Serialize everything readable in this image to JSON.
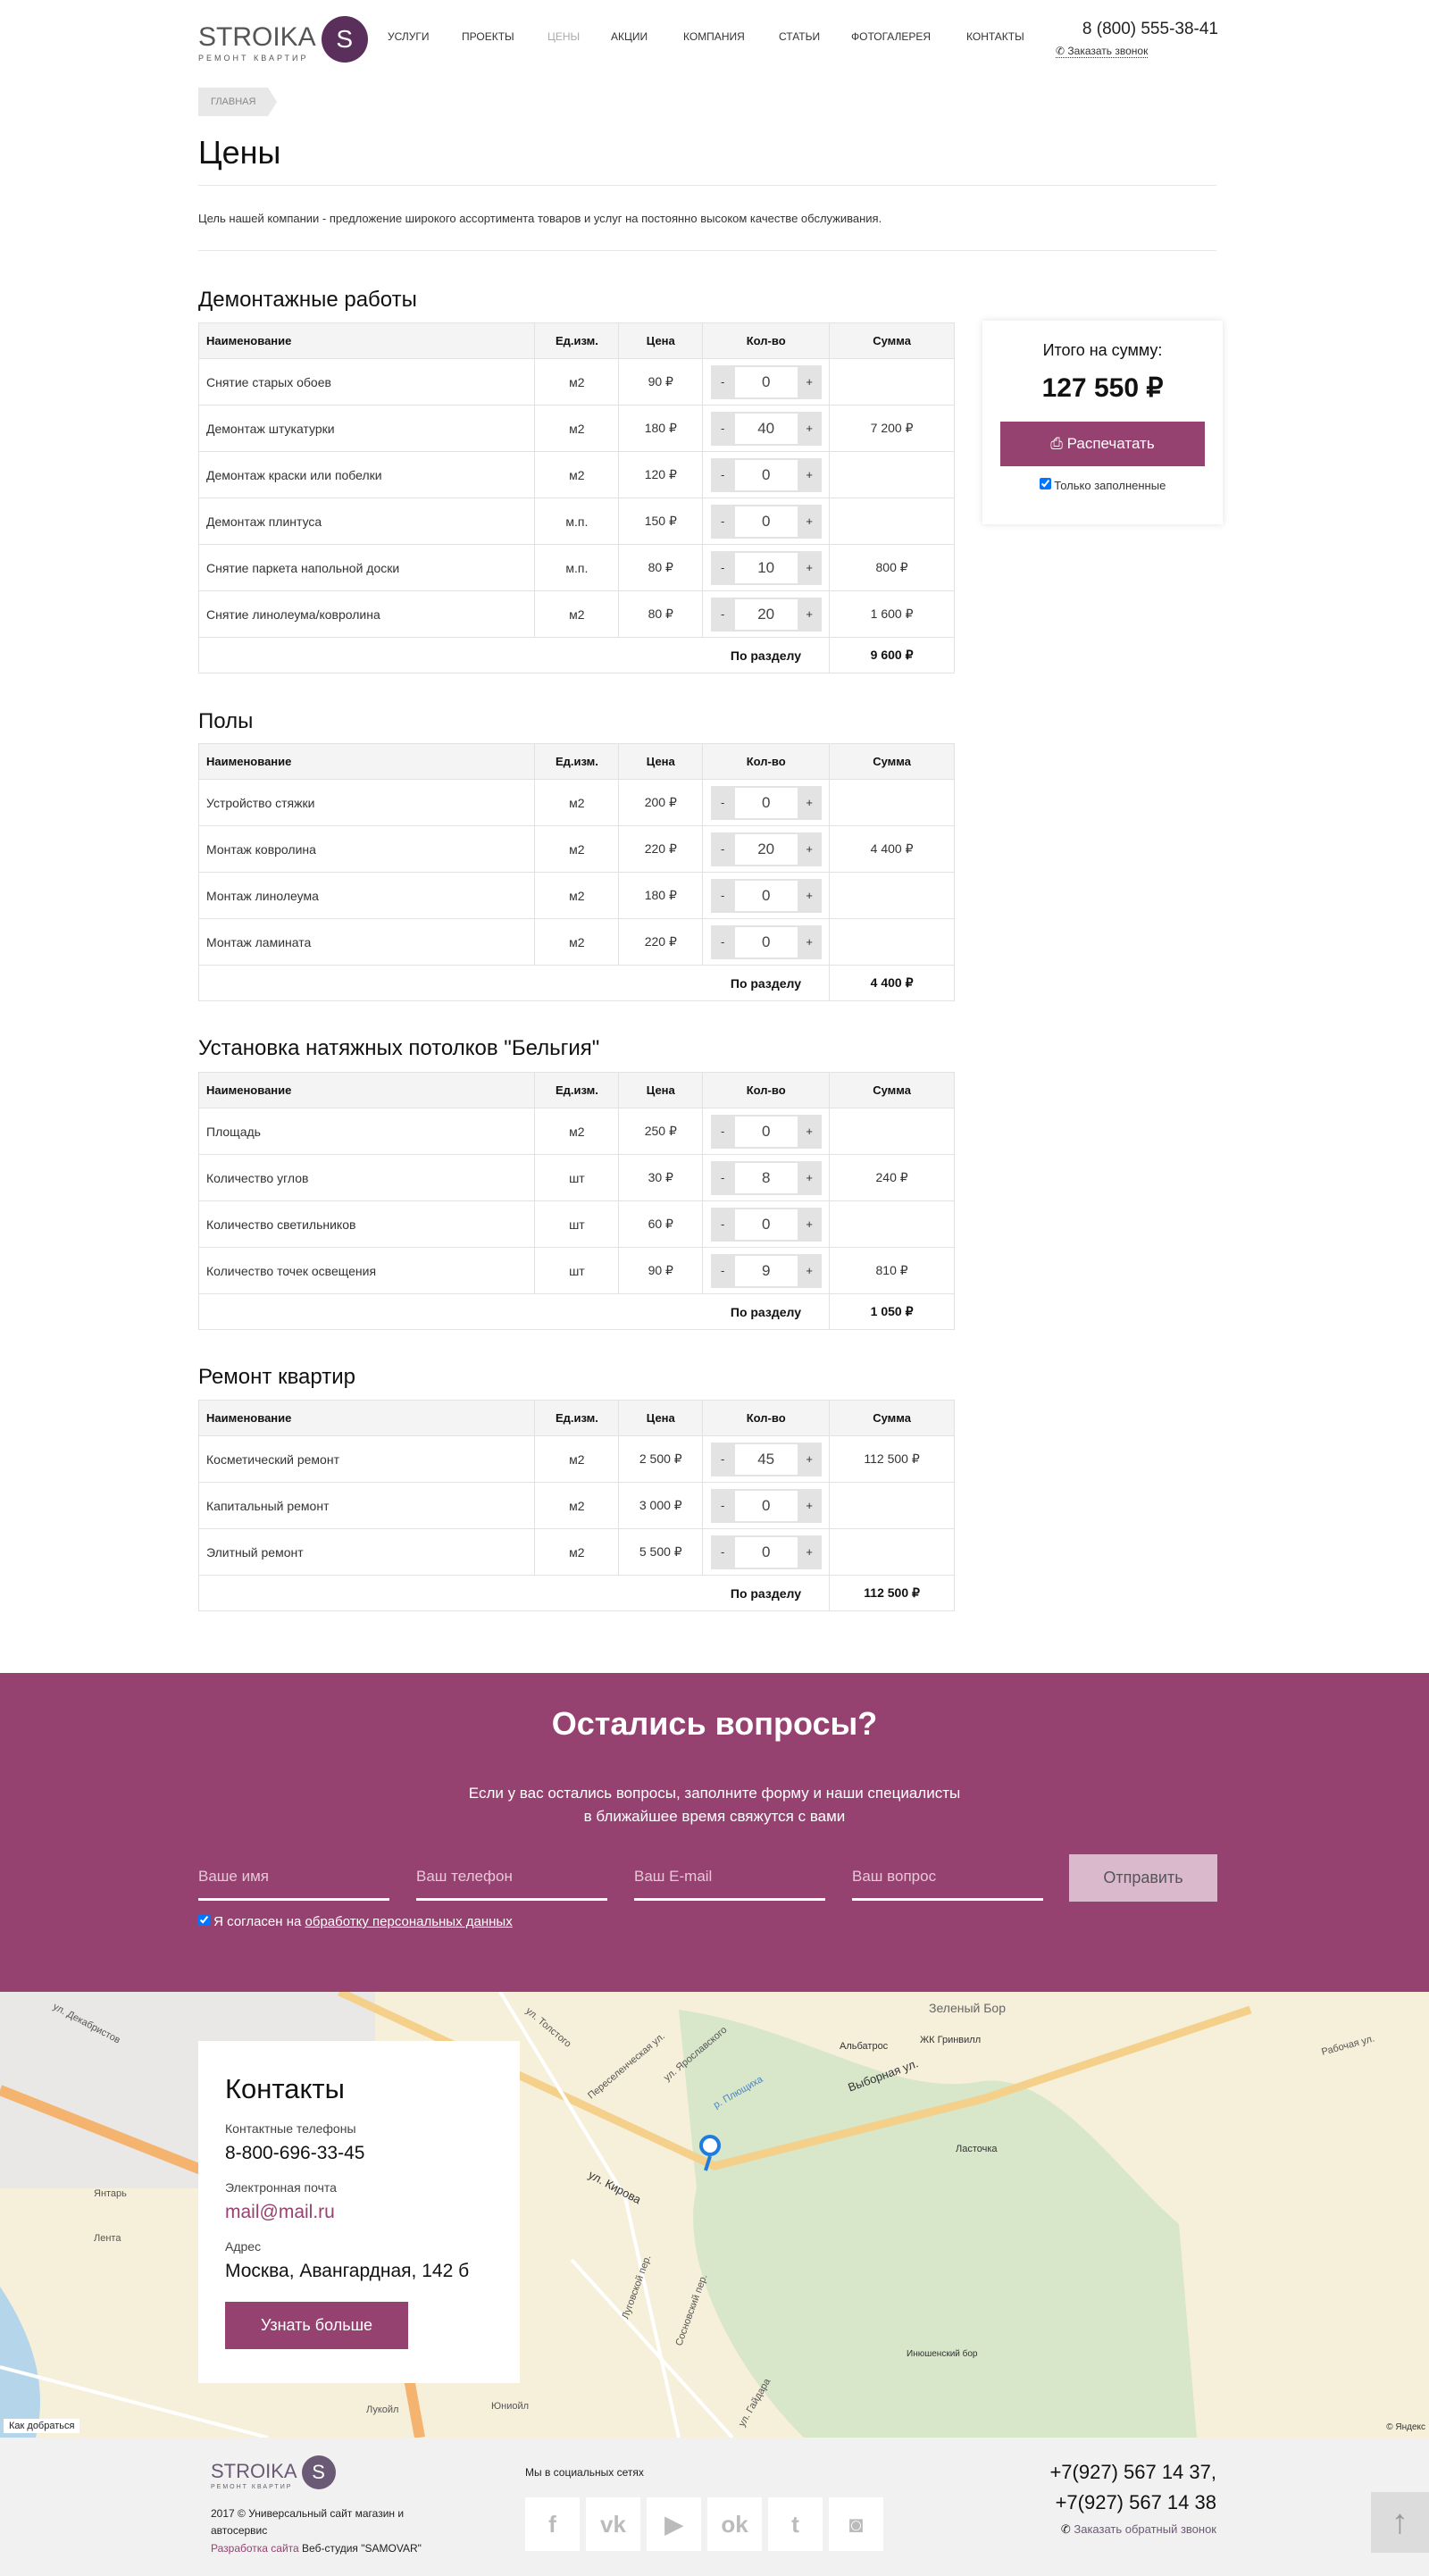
{
  "header": {
    "logo": {
      "word": "STROIKA",
      "letter": "S",
      "tagline": "РЕМОНТ КВАРТИР"
    },
    "nav": [
      "УСЛУГИ",
      "ПРОЕКТЫ",
      "ЦЕНЫ",
      "АКЦИИ",
      "КОМПАНИЯ",
      "СТАТЬИ",
      "ФОТОГАЛЕРЕЯ",
      "КОНТАКТЫ"
    ],
    "nav_active": "ЦЕНЫ",
    "phone": "8 (800) 555-38-41",
    "callback": "Заказать звонок"
  },
  "breadcrumb": [
    "ГЛАВНАЯ"
  ],
  "page": {
    "title": "Цены",
    "intro": "Цель нашей компании - предложение широкого ассортимента товаров и услуг на постоянно высоком качестве обслуживания."
  },
  "table_headers": [
    "Наименование",
    "Ед.изм.",
    "Цена",
    "Кол-во",
    "Сумма"
  ],
  "total_label": "По разделу",
  "sections": [
    {
      "title": "Демонтажные работы",
      "total": "9 600 ₽",
      "rows": [
        {
          "name": "Снятие старых обоев",
          "unit": "м2",
          "price": "90 ₽",
          "qty": "0",
          "sum": ""
        },
        {
          "name": "Демонтаж штукатурки",
          "unit": "м2",
          "price": "180 ₽",
          "qty": "40",
          "sum": "7 200 ₽"
        },
        {
          "name": "Демонтаж краски или побелки",
          "unit": "м2",
          "price": "120 ₽",
          "qty": "0",
          "sum": ""
        },
        {
          "name": "Демонтаж плинтуса",
          "unit": "м.п.",
          "price": "150 ₽",
          "qty": "0",
          "sum": ""
        },
        {
          "name": "Снятие паркета напольной доски",
          "unit": "м.п.",
          "price": "80 ₽",
          "qty": "10",
          "sum": "800 ₽"
        },
        {
          "name": "Снятие линолеума/ковролина",
          "unit": "м2",
          "price": "80 ₽",
          "qty": "20",
          "sum": "1 600 ₽"
        }
      ]
    },
    {
      "title": "Полы",
      "total": "4 400 ₽",
      "rows": [
        {
          "name": "Устройство стяжки",
          "unit": "м2",
          "price": "200 ₽",
          "qty": "0",
          "sum": ""
        },
        {
          "name": "Монтаж ковролина",
          "unit": "м2",
          "price": "220 ₽",
          "qty": "20",
          "sum": "4 400 ₽"
        },
        {
          "name": "Монтаж линолеума",
          "unit": "м2",
          "price": "180 ₽",
          "qty": "0",
          "sum": ""
        },
        {
          "name": "Монтаж ламината",
          "unit": "м2",
          "price": "220 ₽",
          "qty": "0",
          "sum": ""
        }
      ]
    },
    {
      "title": "Установка натяжных потолков \"Бельгия\"",
      "total": "1 050 ₽",
      "rows": [
        {
          "name": "Площадь",
          "unit": "м2",
          "price": "250 ₽",
          "qty": "0",
          "sum": ""
        },
        {
          "name": "Количество углов",
          "unit": "шт",
          "price": "30 ₽",
          "qty": "8",
          "sum": "240 ₽"
        },
        {
          "name": "Количество светильников",
          "unit": "шт",
          "price": "60 ₽",
          "qty": "0",
          "sum": ""
        },
        {
          "name": "Количество точек освещения",
          "unit": "шт",
          "price": "90 ₽",
          "qty": "9",
          "sum": "810 ₽"
        }
      ]
    },
    {
      "title": "Ремонт квартир",
      "total": "112 500 ₽",
      "rows": [
        {
          "name": "Косметический ремонт",
          "unit": "м2",
          "price": "2 500 ₽",
          "qty": "45",
          "sum": "112 500 ₽"
        },
        {
          "name": "Капитальный ремонт",
          "unit": "м2",
          "price": "3 000 ₽",
          "qty": "0",
          "sum": ""
        },
        {
          "name": "Элитный ремонт",
          "unit": "м2",
          "price": "5 500 ₽",
          "qty": "0",
          "sum": ""
        }
      ]
    }
  ],
  "summary": {
    "label": "Итого на сумму:",
    "value": "127 550 ₽",
    "print": "Распечатать",
    "only_filled": "Только заполненные"
  },
  "form": {
    "title": "Остались вопросы?",
    "desc1": "Если у вас остались вопросы, заполните форму и наши специалисты",
    "desc2": "в ближайшее время свяжутся с вами",
    "name_ph": "Ваше имя",
    "phone_ph": "Ваш телефон",
    "email_ph": "Ваш E-mail",
    "question_ph": "Ваш вопрос",
    "submit": "Отправить",
    "agree": "Я согласен на ",
    "agree_link": "обработку персональных данных"
  },
  "contacts": {
    "title": "Контакты",
    "phones_label": "Контактные телефоны",
    "phone": "8-800-696-33-45",
    "email_label": "Электронная почта",
    "email": "mail@mail.ru",
    "address_label": "Адрес",
    "address": "Москва, Авангардная, 142 б",
    "more": "Узнать больше"
  },
  "map": {
    "labels": [
      "ул. Декабристов",
      "ул. Кирова",
      "ул. Толстого",
      "Переселенческая ул.",
      "ул. Ярославского",
      "Выборная ул.",
      "Зеленый Бор",
      "ЖК Гринвилл",
      "Альбатрос",
      "Ласточка",
      "Янтарь",
      "Лента",
      "Лукойл",
      "Юниойл",
      "Луговской пер.",
      "Сосновский пер.",
      "ул. Гайдара",
      "Инюшенский бор",
      "Рабочая ул.",
      "р. Плющиха"
    ],
    "route": "Как добраться",
    "copyright": "© Яндекс",
    "accent": "#954270"
  },
  "footer": {
    "copyright": "2017 © Универсальный сайт магазин и автосервис",
    "dev_link": "Разработка сайта",
    "dev_name": " Веб-студия \"SAMOVAR\"",
    "social_title": "Мы в социальных сетях",
    "social": [
      {
        "icon": "facebook-icon",
        "glyph": "f"
      },
      {
        "icon": "vk-icon",
        "glyph": "vk"
      },
      {
        "icon": "youtube-icon",
        "glyph": "▶"
      },
      {
        "icon": "odnoklassniki-icon",
        "glyph": "ok"
      },
      {
        "icon": "twitter-icon",
        "glyph": "t"
      },
      {
        "icon": "instagram-icon",
        "glyph": "◙"
      }
    ],
    "phone1": "+7(927) 567 14 37,",
    "phone2": "+7(927) 567 14 38",
    "callback": "Заказать обратный звонок",
    "up": "↑"
  }
}
